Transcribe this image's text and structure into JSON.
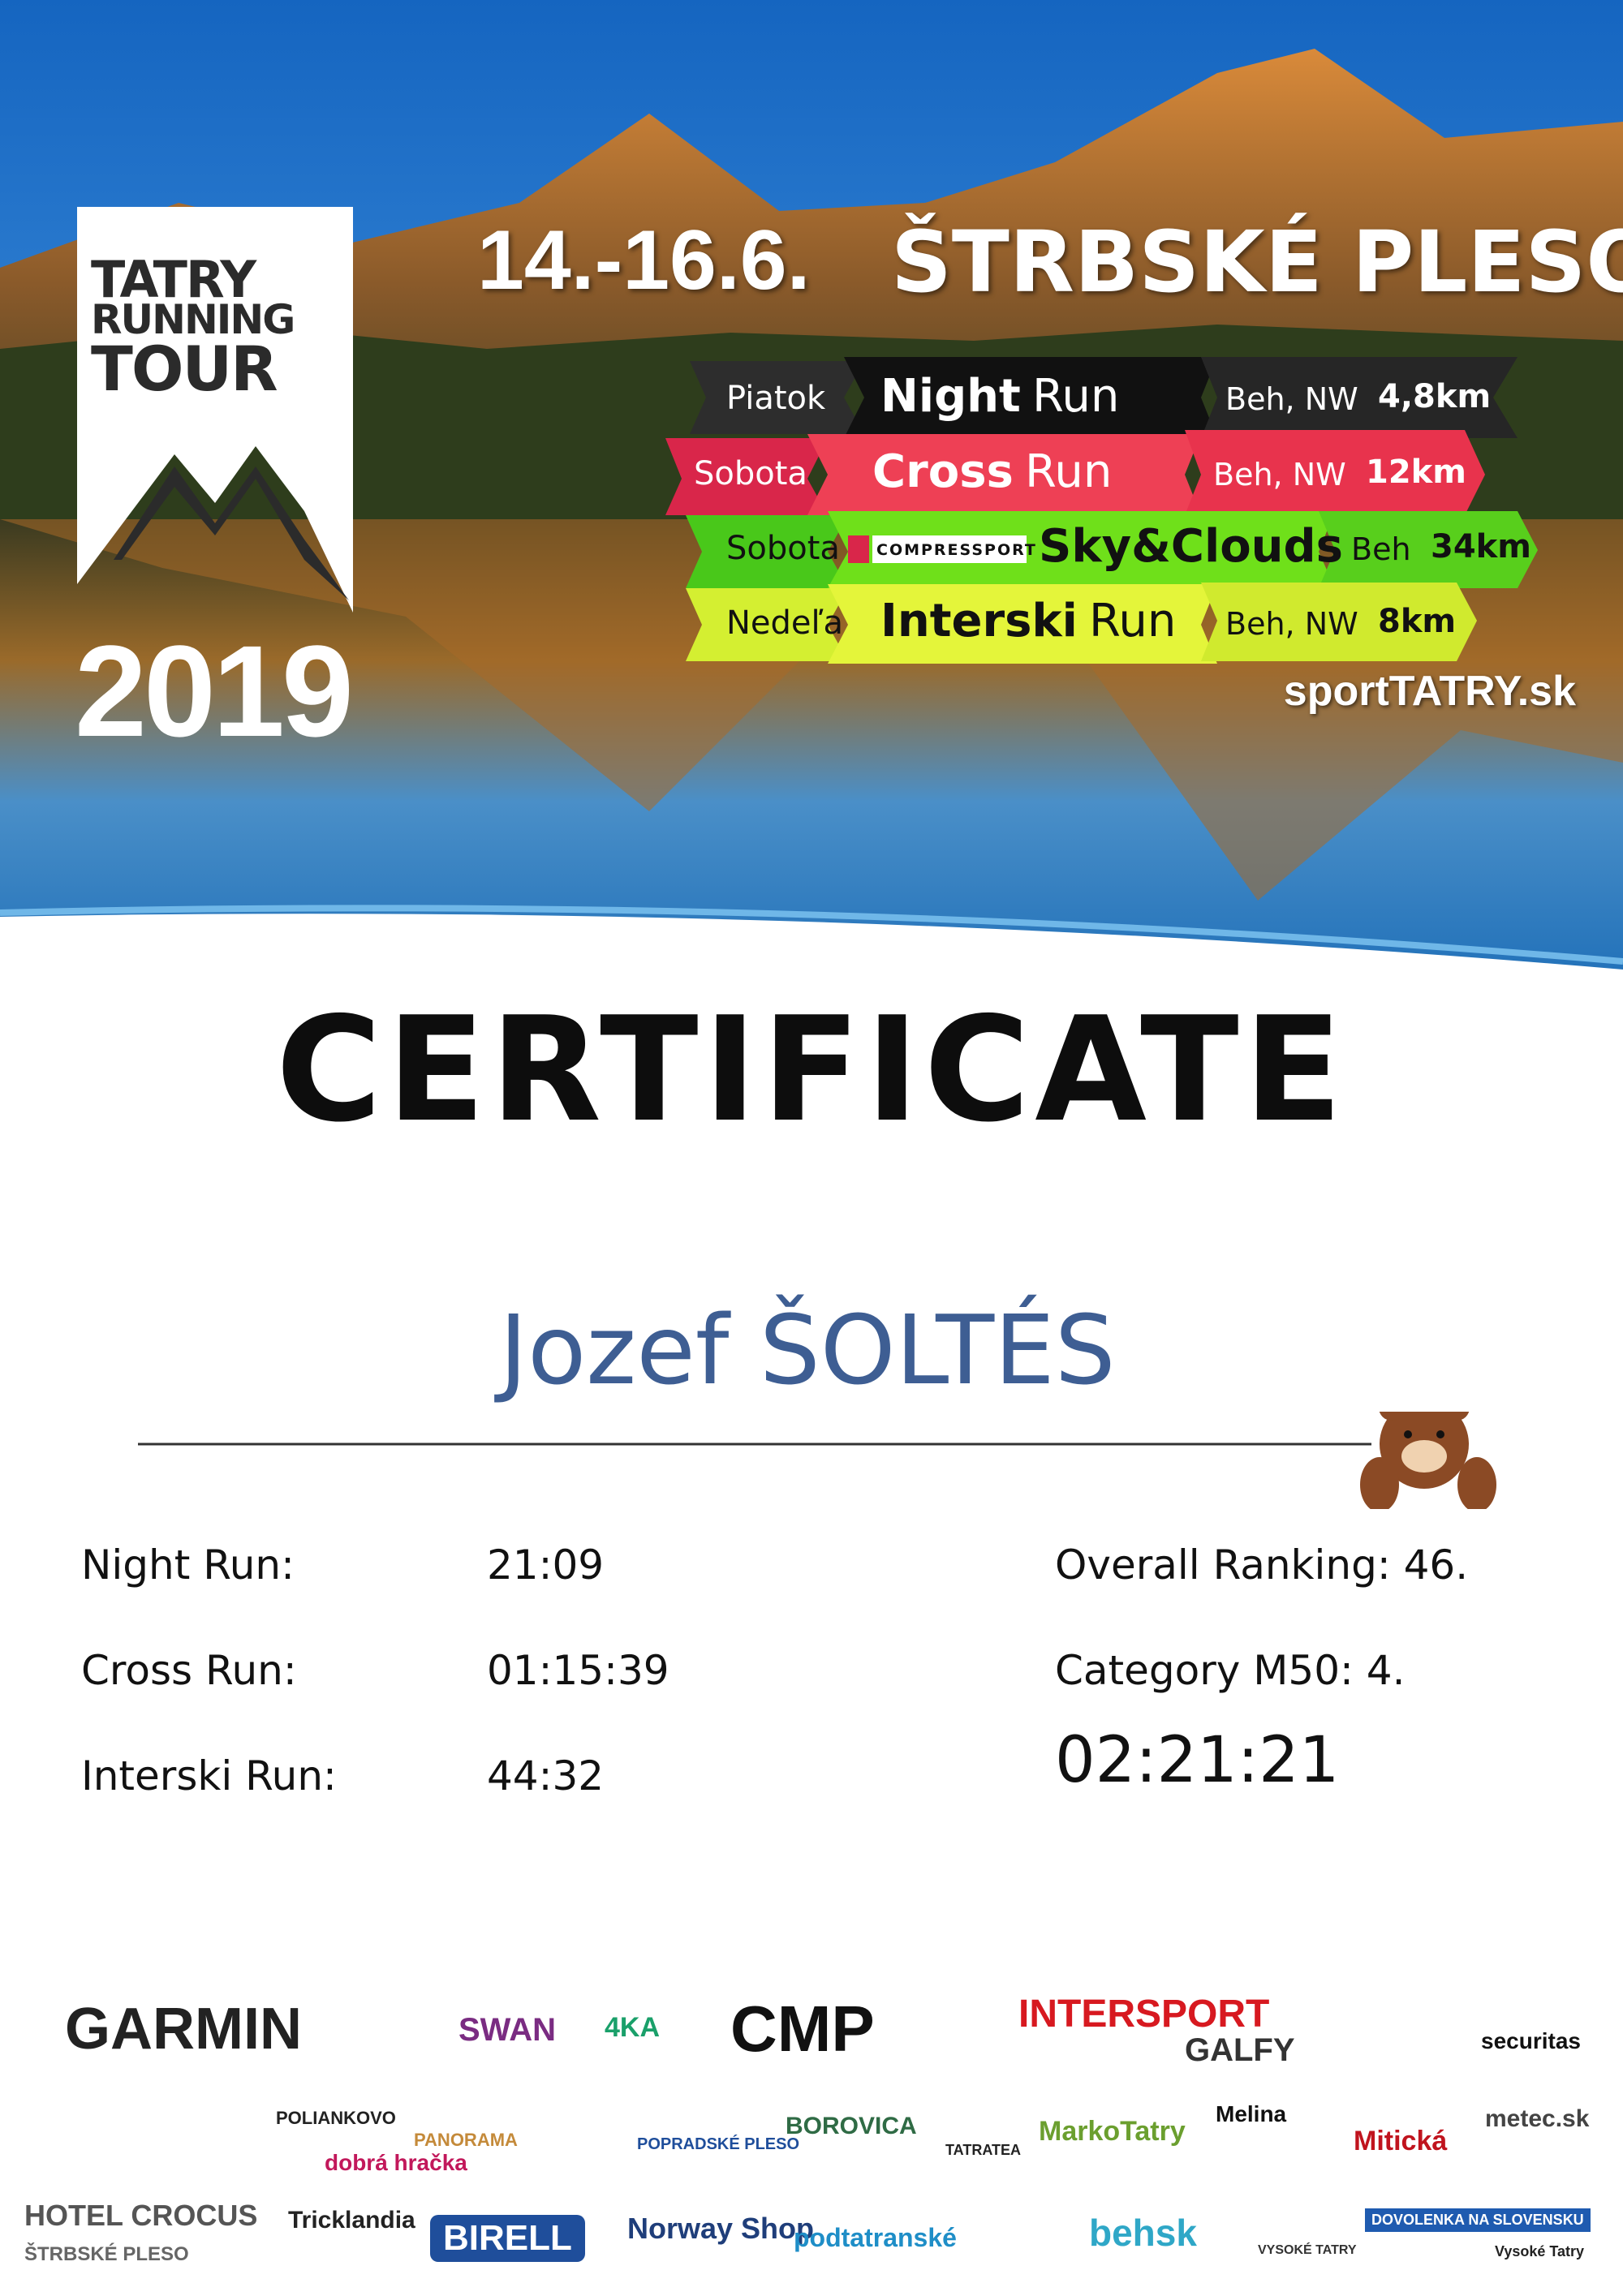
{
  "header": {
    "logo": {
      "line1": "TATRY",
      "line2": "RUNNING",
      "line3": "TOUR",
      "year": "2019"
    },
    "dates": "14.-16.6.",
    "location": "ŠTRBSKÉ PLESO",
    "races": [
      {
        "day": "Piatok",
        "name": "Night",
        "suffix": "Run",
        "detail": "Beh, NW",
        "distance": "4,8km"
      },
      {
        "day": "Sobota",
        "name": "Cross",
        "suffix": "Run",
        "detail": "Beh, NW",
        "distance": "12km"
      },
      {
        "day": "Sobota",
        "brand": "COMPRESSPORT",
        "name": "Sky&Clouds",
        "detail": "Beh",
        "distance": "34km"
      },
      {
        "day": "Nedeľa",
        "name": "Interski",
        "suffix": "Run",
        "detail": "Beh, NW",
        "distance": "8km"
      }
    ],
    "website": "sportTATRY.sk"
  },
  "certificate": {
    "title": "CERTIFICATE",
    "name": "Jozef ŠOLTÉS",
    "results": [
      {
        "label": "Night Run:",
        "time": "21:09"
      },
      {
        "label": "Cross Run:",
        "time": "01:15:39"
      },
      {
        "label": "Interski Run:",
        "time": "44:32"
      }
    ],
    "overall": "Overall Ranking: 46.",
    "category": "Category M50: 4.",
    "total": "02:21:21"
  },
  "sponsors": [
    "GARMIN",
    "SWAN",
    "4KA",
    "CMP",
    "INTERSPORT",
    "GALFY",
    "securitas",
    "HOTEL CROCUS",
    "ŠTRBSKÉ PLESO",
    "POLIANKOVO",
    "dobrá hračka",
    "PANORAMA",
    "POPRADSKÉ PLESO",
    "BOROVICA",
    "TATRATEA",
    "MarkoTatry",
    "Melina",
    "Mitická",
    "metec.sk",
    "Tricklandia",
    "BIRELL",
    "Norway Shop",
    "podtatranské",
    "behsk",
    "VYSOKÉ TATRY",
    "DOVOLENKA NA SLOVENSKU",
    "Vysoké Tatry"
  ]
}
